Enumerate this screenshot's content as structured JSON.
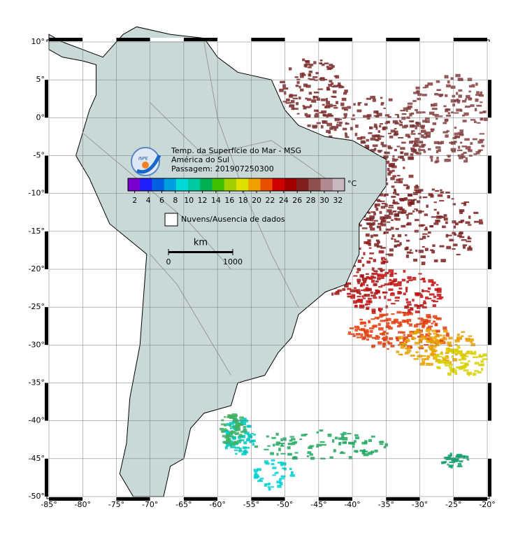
{
  "map": {
    "title_lines": [
      "Temp. da Superfície do Mar - MSG",
      "América do Sul",
      "Passagem: 201907250300"
    ],
    "logo_text": "INPE",
    "lonlim": [
      -85,
      -20
    ],
    "latlim": [
      -50,
      10
    ],
    "lon_ticks": [
      {
        "value": -85,
        "label": "-85°"
      },
      {
        "value": -80,
        "label": "-80°"
      },
      {
        "value": -75,
        "label": "-75°"
      },
      {
        "value": -70,
        "label": "-70°"
      },
      {
        "value": -65,
        "label": "-65°"
      },
      {
        "value": -60,
        "label": "-60°"
      },
      {
        "value": -55,
        "label": "-55°"
      },
      {
        "value": -50,
        "label": "-50°"
      },
      {
        "value": -45,
        "label": "-45°"
      },
      {
        "value": -40,
        "label": "-40°"
      },
      {
        "value": -35,
        "label": "-35°"
      },
      {
        "value": -30,
        "label": "-30°"
      },
      {
        "value": -25,
        "label": "-25°"
      },
      {
        "value": -20,
        "label": "-20°"
      }
    ],
    "lat_ticks": [
      {
        "value": 10,
        "label": "10°"
      },
      {
        "value": 5,
        "label": "5°"
      },
      {
        "value": 0,
        "label": "0°"
      },
      {
        "value": -5,
        "label": "-5°"
      },
      {
        "value": -10,
        "label": "-10°"
      },
      {
        "value": -15,
        "label": "-15°"
      },
      {
        "value": -20,
        "label": "-20°"
      },
      {
        "value": -25,
        "label": "-25°"
      },
      {
        "value": -30,
        "label": "-30°"
      },
      {
        "value": -35,
        "label": "-35°"
      },
      {
        "value": -40,
        "label": "-40°"
      },
      {
        "value": -45,
        "label": "-45°"
      },
      {
        "value": -50,
        "label": "-50°"
      }
    ],
    "grid": true,
    "colorbar": {
      "unit": "°C",
      "lim": [
        1,
        33
      ],
      "ticks": [
        2,
        4,
        6,
        8,
        10,
        12,
        14,
        16,
        18,
        20,
        22,
        24,
        26,
        28,
        30,
        32
      ],
      "colors": [
        "#7a00d0",
        "#2020ff",
        "#0060e0",
        "#00a0e0",
        "#00d8d8",
        "#00c8a0",
        "#00b050",
        "#40c000",
        "#a0d000",
        "#e0e000",
        "#f0a000",
        "#e85000",
        "#d00000",
        "#a00000",
        "#802020",
        "#905050",
        "#b08890",
        "#c8b8c0"
      ]
    },
    "legend_text": "Nuvens/Ausencia de dados",
    "scale": {
      "unit": "km",
      "start": 0,
      "end": 1000
    }
  }
}
